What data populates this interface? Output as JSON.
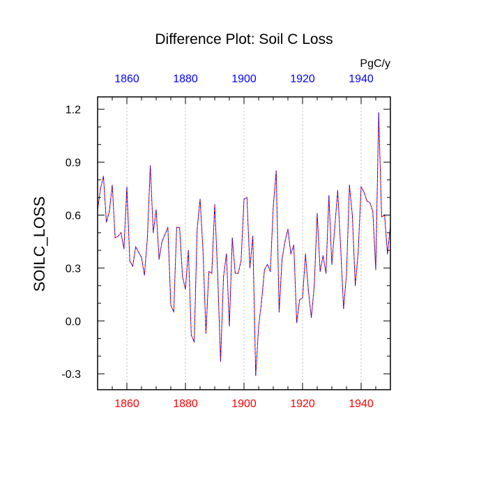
{
  "chart_data": {
    "type": "line",
    "title": "Difference Plot: Soil C Loss",
    "ylabel": "SOILC_LOSS",
    "units_label": "PgC/y",
    "xlim": [
      1850,
      1950
    ],
    "ylim": [
      -0.39,
      1.27
    ],
    "y_ticks": [
      -0.3,
      0.0,
      0.3,
      0.6,
      0.9,
      1.2
    ],
    "y_tick_labels": [
      "-0.3",
      "0.0",
      "0.3",
      "0.6",
      "0.9",
      "1.2"
    ],
    "x_ticks": [
      1860,
      1880,
      1900,
      1920,
      1940
    ],
    "x_tick_labels_bottom": [
      "1860",
      "1880",
      "1900",
      "1920",
      "1940"
    ],
    "x_tick_labels_top": [
      "1860",
      "1880",
      "1900",
      "1920",
      "1940"
    ],
    "grid": "vertical dotted at x ticks",
    "colors": {
      "bottom_axis_labels": "#ff0000",
      "top_axis_labels": "#0000ff",
      "series_primary": "#ff0000",
      "series_secondary": "#0000ff",
      "grid": "#bdbdbd",
      "axes": "#000000"
    },
    "series": [
      {
        "name": "SOILC_LOSS difference",
        "style": "dashed red/blue overlay",
        "x": [
          1850,
          1851,
          1852,
          1853,
          1854,
          1855,
          1856,
          1857,
          1858,
          1859,
          1860,
          1861,
          1862,
          1863,
          1864,
          1865,
          1866,
          1867,
          1868,
          1869,
          1870,
          1871,
          1872,
          1873,
          1874,
          1875,
          1876,
          1877,
          1878,
          1879,
          1880,
          1881,
          1882,
          1883,
          1884,
          1885,
          1886,
          1887,
          1888,
          1889,
          1890,
          1891,
          1892,
          1893,
          1894,
          1895,
          1896,
          1897,
          1898,
          1899,
          1900,
          1901,
          1902,
          1903,
          1904,
          1905,
          1906,
          1907,
          1908,
          1909,
          1910,
          1911,
          1912,
          1913,
          1914,
          1915,
          1916,
          1917,
          1918,
          1919,
          1920,
          1921,
          1922,
          1923,
          1924,
          1925,
          1926,
          1927,
          1928,
          1929,
          1930,
          1931,
          1932,
          1933,
          1934,
          1935,
          1936,
          1937,
          1938,
          1939,
          1940,
          1941,
          1942,
          1943,
          1944,
          1945,
          1946,
          1947,
          1948,
          1949,
          1950
        ],
        "values": [
          0.63,
          0.75,
          0.82,
          0.56,
          0.62,
          0.77,
          0.47,
          0.48,
          0.5,
          0.41,
          0.76,
          0.34,
          0.31,
          0.42,
          0.39,
          0.36,
          0.26,
          0.47,
          0.88,
          0.5,
          0.63,
          0.35,
          0.45,
          0.49,
          0.53,
          0.09,
          0.05,
          0.53,
          0.53,
          0.25,
          0.18,
          0.4,
          -0.08,
          -0.12,
          0.52,
          0.69,
          0.4,
          -0.07,
          0.28,
          0.27,
          0.66,
          0.27,
          -0.23,
          0.25,
          0.38,
          -0.03,
          0.47,
          0.27,
          0.27,
          0.34,
          0.69,
          0.7,
          0.3,
          0.48,
          -0.31,
          -0.03,
          0.11,
          0.29,
          0.32,
          0.28,
          0.65,
          0.85,
          0.05,
          0.35,
          0.45,
          0.52,
          0.38,
          0.43,
          -0.01,
          0.12,
          0.13,
          0.38,
          0.17,
          0.02,
          0.2,
          0.61,
          0.28,
          0.37,
          0.27,
          0.71,
          0.32,
          0.53,
          0.74,
          0.42,
          0.07,
          0.26,
          0.77,
          0.6,
          0.2,
          0.39,
          0.76,
          0.73,
          0.68,
          0.67,
          0.62,
          0.29,
          1.18,
          0.59,
          0.6,
          0.38,
          0.54
        ]
      }
    ]
  }
}
